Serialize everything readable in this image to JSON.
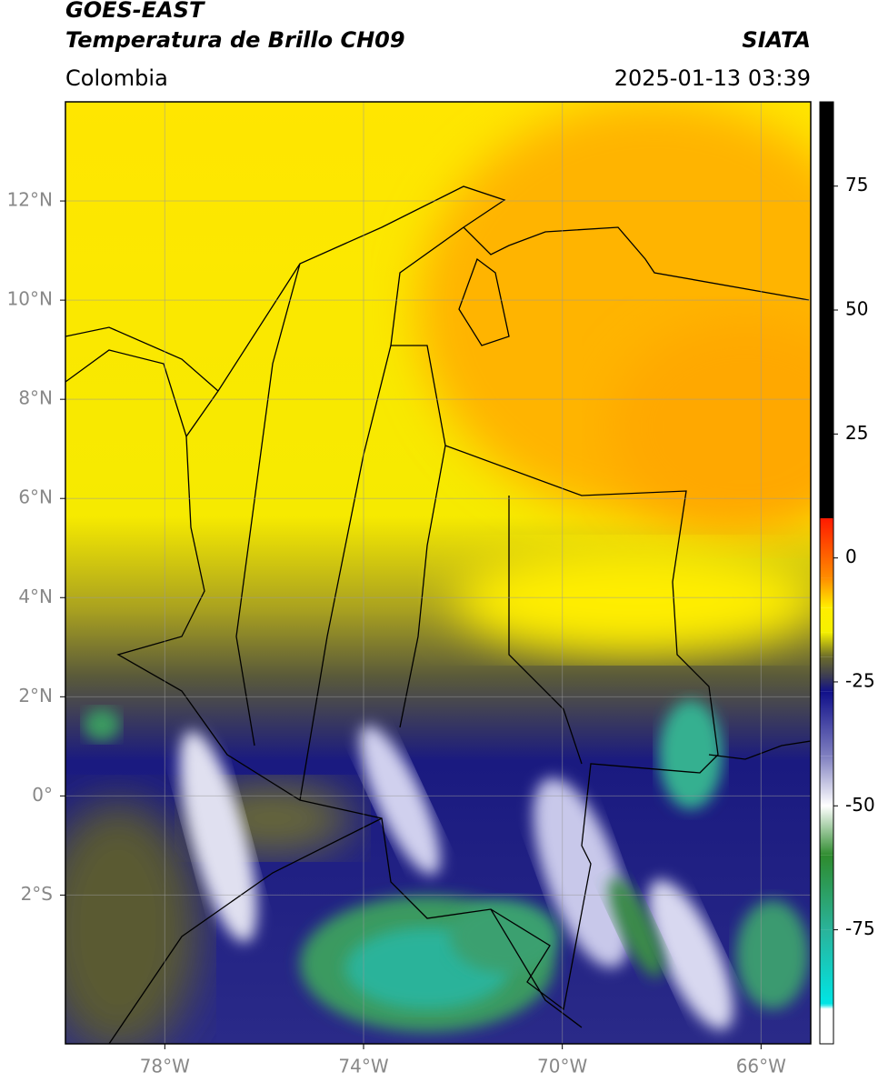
{
  "header": {
    "title": "GOES-EAST",
    "subtitle": "Temperatura de Brillo CH09",
    "source": "SIATA",
    "region": "Colombia",
    "datetime": "2025-01-13 03:39"
  },
  "map": {
    "xlim": [
      -80,
      -65
    ],
    "ylim": [
      -5,
      14
    ],
    "xticks": [
      {
        "value": -78,
        "label": "78°W"
      },
      {
        "value": -74,
        "label": "74°W"
      },
      {
        "value": -70,
        "label": "70°W"
      },
      {
        "value": -66,
        "label": "66°W"
      }
    ],
    "yticks": [
      {
        "value": 12,
        "label": "12°N"
      },
      {
        "value": 10,
        "label": "10°N"
      },
      {
        "value": 8,
        "label": "8°N"
      },
      {
        "value": 6,
        "label": "6°N"
      },
      {
        "value": 4,
        "label": "4°N"
      },
      {
        "value": 2,
        "label": "2°N"
      },
      {
        "value": 0,
        "label": "0°"
      },
      {
        "value": -2,
        "label": "2°S"
      }
    ],
    "grid": true
  },
  "colorbar": {
    "lim": [
      -98,
      92
    ],
    "ticks": [
      75,
      50,
      25,
      0,
      -25,
      -50,
      -75
    ],
    "colormap": [
      {
        "value": 92,
        "color": "#000000"
      },
      {
        "value": 8,
        "color": "#000000"
      },
      {
        "value": 8,
        "color": "#ff1a00"
      },
      {
        "value": -4,
        "color": "#ff8c00"
      },
      {
        "value": -10,
        "color": "#ffee00"
      },
      {
        "value": -15,
        "color": "#f5f000"
      },
      {
        "value": -20,
        "color": "#6b6b2a"
      },
      {
        "value": -24,
        "color": "#3a3a55"
      },
      {
        "value": -27,
        "color": "#10108a"
      },
      {
        "value": -40,
        "color": "#8080c0"
      },
      {
        "value": -50,
        "color": "#ffffff"
      },
      {
        "value": -60,
        "color": "#2e8b2e"
      },
      {
        "value": -75,
        "color": "#2ab39a"
      },
      {
        "value": -90,
        "color": "#00e5e5"
      },
      {
        "value": -91,
        "color": "#ffffff"
      },
      {
        "value": -98,
        "color": "#ffffff"
      }
    ]
  }
}
